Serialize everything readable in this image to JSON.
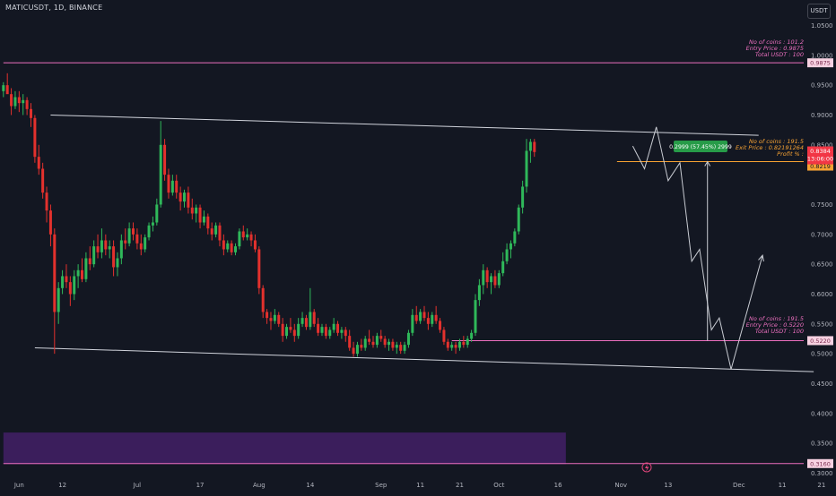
{
  "header": {
    "symbol_title": "MATICUSDT, 1D, BINANCE",
    "currency_button": "USDT"
  },
  "colors": {
    "background": "#131722",
    "up": "#26a69a",
    "down": "#ef5350",
    "candle_up": "#2fb85a",
    "candle_down": "#e3312d",
    "channel_line": "#d1d4dc",
    "pink_line": "#ec6fbf",
    "orange_line": "#f7a233",
    "price_label": "#f23645",
    "purple_zone": "#3b1e5c",
    "axis_text": "#b2b5be",
    "projection": "#c9ccd3"
  },
  "chart_data": {
    "type": "candlestick",
    "title": "MATICUSDT, 1D, BINANCE",
    "y_axis": {
      "min": 0.3,
      "max": 1.05,
      "ticks": [
        1.05,
        1.0,
        0.95,
        0.9,
        0.85,
        0.8,
        0.75,
        0.7,
        0.65,
        0.6,
        0.55,
        0.5,
        0.45,
        0.4,
        0.35,
        0.3
      ],
      "tick_labels": [
        "1.0500",
        "1.0000",
        "0.9500",
        "0.9000",
        "0.8500",
        "",
        "0.7500",
        "0.7000",
        "0.6500",
        "0.6000",
        "0.5500",
        "0.5000",
        "0.4500",
        "0.4000",
        "0.3500",
        "0.3000"
      ],
      "position": "right"
    },
    "x_axis": {
      "start_date": "2023-05-28",
      "end_date": "2023-12-22",
      "ticks": [
        {
          "day": 4,
          "label": "Jun"
        },
        {
          "day": 15,
          "label": "12"
        },
        {
          "day": 34,
          "label": "Jul"
        },
        {
          "day": 50,
          "label": "17"
        },
        {
          "day": 65,
          "label": "Aug"
        },
        {
          "day": 78,
          "label": "14"
        },
        {
          "day": 96,
          "label": "Sep"
        },
        {
          "day": 106,
          "label": "11"
        },
        {
          "day": 116,
          "label": "21"
        },
        {
          "day": 126,
          "label": "Oct"
        },
        {
          "day": 141,
          "label": "16"
        },
        {
          "day": 157,
          "label": "Nov"
        },
        {
          "day": 169,
          "label": "13"
        },
        {
          "day": 187,
          "label": "Dec"
        },
        {
          "day": 198,
          "label": "11"
        },
        {
          "day": 208,
          "label": "21"
        }
      ]
    },
    "series": [
      {
        "name": "MATICUSDT",
        "ohlc": [
          [
            0.94,
            0.955,
            0.93,
            0.95
          ],
          [
            0.95,
            0.97,
            0.94,
            0.935
          ],
          [
            0.935,
            0.945,
            0.9,
            0.915
          ],
          [
            0.915,
            0.94,
            0.91,
            0.93
          ],
          [
            0.93,
            0.94,
            0.905,
            0.92
          ],
          [
            0.92,
            0.935,
            0.9,
            0.925
          ],
          [
            0.925,
            0.93,
            0.9,
            0.91
          ],
          [
            0.91,
            0.92,
            0.88,
            0.895
          ],
          [
            0.895,
            0.9,
            0.82,
            0.83
          ],
          [
            0.83,
            0.85,
            0.8,
            0.81
          ],
          [
            0.81,
            0.82,
            0.76,
            0.77
          ],
          [
            0.77,
            0.78,
            0.72,
            0.74
          ],
          [
            0.74,
            0.75,
            0.68,
            0.7
          ],
          [
            0.7,
            0.71,
            0.5,
            0.57
          ],
          [
            0.57,
            0.62,
            0.55,
            0.61
          ],
          [
            0.61,
            0.64,
            0.6,
            0.63
          ],
          [
            0.63,
            0.65,
            0.61,
            0.62
          ],
          [
            0.62,
            0.63,
            0.58,
            0.6
          ],
          [
            0.6,
            0.64,
            0.59,
            0.63
          ],
          [
            0.63,
            0.65,
            0.61,
            0.64
          ],
          [
            0.64,
            0.66,
            0.62,
            0.625
          ],
          [
            0.625,
            0.67,
            0.62,
            0.66
          ],
          [
            0.66,
            0.68,
            0.64,
            0.65
          ],
          [
            0.65,
            0.69,
            0.645,
            0.68
          ],
          [
            0.68,
            0.7,
            0.66,
            0.67
          ],
          [
            0.67,
            0.71,
            0.66,
            0.69
          ],
          [
            0.69,
            0.7,
            0.665,
            0.675
          ],
          [
            0.675,
            0.69,
            0.66,
            0.68
          ],
          [
            0.68,
            0.69,
            0.63,
            0.645
          ],
          [
            0.645,
            0.67,
            0.63,
            0.66
          ],
          [
            0.66,
            0.7,
            0.65,
            0.69
          ],
          [
            0.69,
            0.71,
            0.675,
            0.685
          ],
          [
            0.685,
            0.72,
            0.68,
            0.71
          ],
          [
            0.71,
            0.72,
            0.69,
            0.7
          ],
          [
            0.7,
            0.71,
            0.675,
            0.685
          ],
          [
            0.685,
            0.7,
            0.665,
            0.675
          ],
          [
            0.675,
            0.7,
            0.67,
            0.695
          ],
          [
            0.695,
            0.72,
            0.69,
            0.715
          ],
          [
            0.715,
            0.73,
            0.705,
            0.72
          ],
          [
            0.72,
            0.76,
            0.715,
            0.75
          ],
          [
            0.75,
            0.89,
            0.745,
            0.85
          ],
          [
            0.85,
            0.86,
            0.79,
            0.8
          ],
          [
            0.8,
            0.81,
            0.76,
            0.77
          ],
          [
            0.77,
            0.8,
            0.765,
            0.79
          ],
          [
            0.79,
            0.8,
            0.76,
            0.77
          ],
          [
            0.77,
            0.78,
            0.74,
            0.755
          ],
          [
            0.755,
            0.775,
            0.745,
            0.77
          ],
          [
            0.77,
            0.78,
            0.735,
            0.745
          ],
          [
            0.745,
            0.76,
            0.725,
            0.735
          ],
          [
            0.735,
            0.75,
            0.72,
            0.745
          ],
          [
            0.745,
            0.75,
            0.71,
            0.72
          ],
          [
            0.72,
            0.74,
            0.715,
            0.73
          ],
          [
            0.73,
            0.735,
            0.7,
            0.71
          ],
          [
            0.71,
            0.72,
            0.69,
            0.7
          ],
          [
            0.7,
            0.72,
            0.695,
            0.715
          ],
          [
            0.715,
            0.72,
            0.68,
            0.69
          ],
          [
            0.69,
            0.7,
            0.665,
            0.675
          ],
          [
            0.675,
            0.69,
            0.67,
            0.685
          ],
          [
            0.685,
            0.69,
            0.665,
            0.67
          ],
          [
            0.67,
            0.685,
            0.665,
            0.68
          ],
          [
            0.68,
            0.71,
            0.675,
            0.705
          ],
          [
            0.705,
            0.715,
            0.69,
            0.695
          ],
          [
            0.695,
            0.71,
            0.69,
            0.7
          ],
          [
            0.7,
            0.705,
            0.68,
            0.69
          ],
          [
            0.69,
            0.7,
            0.67,
            0.675
          ],
          [
            0.675,
            0.68,
            0.6,
            0.61
          ],
          [
            0.61,
            0.615,
            0.56,
            0.57
          ],
          [
            0.57,
            0.575,
            0.55,
            0.56
          ],
          [
            0.56,
            0.57,
            0.54,
            0.555
          ],
          [
            0.555,
            0.575,
            0.55,
            0.565
          ],
          [
            0.565,
            0.57,
            0.545,
            0.55
          ],
          [
            0.55,
            0.56,
            0.52,
            0.53
          ],
          [
            0.53,
            0.55,
            0.525,
            0.545
          ],
          [
            0.545,
            0.56,
            0.535,
            0.54
          ],
          [
            0.54,
            0.55,
            0.52,
            0.53
          ],
          [
            0.53,
            0.56,
            0.525,
            0.55
          ],
          [
            0.55,
            0.57,
            0.545,
            0.56
          ],
          [
            0.56,
            0.565,
            0.54,
            0.545
          ],
          [
            0.545,
            0.61,
            0.54,
            0.57
          ],
          [
            0.57,
            0.575,
            0.545,
            0.55
          ],
          [
            0.55,
            0.56,
            0.53,
            0.535
          ],
          [
            0.535,
            0.55,
            0.53,
            0.545
          ],
          [
            0.545,
            0.55,
            0.525,
            0.53
          ],
          [
            0.53,
            0.545,
            0.525,
            0.54
          ],
          [
            0.54,
            0.56,
            0.535,
            0.55
          ],
          [
            0.55,
            0.555,
            0.53,
            0.535
          ],
          [
            0.535,
            0.545,
            0.525,
            0.54
          ],
          [
            0.54,
            0.545,
            0.52,
            0.53
          ],
          [
            0.53,
            0.54,
            0.505,
            0.51
          ],
          [
            0.51,
            0.52,
            0.495,
            0.5
          ],
          [
            0.5,
            0.52,
            0.495,
            0.515
          ],
          [
            0.515,
            0.525,
            0.505,
            0.51
          ],
          [
            0.51,
            0.53,
            0.505,
            0.525
          ],
          [
            0.525,
            0.54,
            0.515,
            0.52
          ],
          [
            0.52,
            0.53,
            0.51,
            0.515
          ],
          [
            0.515,
            0.535,
            0.51,
            0.53
          ],
          [
            0.53,
            0.54,
            0.52,
            0.525
          ],
          [
            0.525,
            0.53,
            0.51,
            0.515
          ],
          [
            0.515,
            0.525,
            0.505,
            0.52
          ],
          [
            0.52,
            0.525,
            0.505,
            0.51
          ],
          [
            0.51,
            0.52,
            0.5,
            0.515
          ],
          [
            0.515,
            0.52,
            0.5,
            0.505
          ],
          [
            0.505,
            0.52,
            0.5,
            0.515
          ],
          [
            0.515,
            0.54,
            0.51,
            0.535
          ],
          [
            0.535,
            0.575,
            0.53,
            0.565
          ],
          [
            0.565,
            0.58,
            0.55,
            0.555
          ],
          [
            0.555,
            0.575,
            0.55,
            0.57
          ],
          [
            0.57,
            0.58,
            0.555,
            0.56
          ],
          [
            0.56,
            0.57,
            0.54,
            0.55
          ],
          [
            0.55,
            0.57,
            0.545,
            0.565
          ],
          [
            0.565,
            0.58,
            0.55,
            0.555
          ],
          [
            0.555,
            0.56,
            0.535,
            0.54
          ],
          [
            0.54,
            0.545,
            0.515,
            0.52
          ],
          [
            0.52,
            0.525,
            0.505,
            0.51
          ],
          [
            0.51,
            0.52,
            0.505,
            0.515
          ],
          [
            0.515,
            0.52,
            0.5,
            0.51
          ],
          [
            0.51,
            0.525,
            0.505,
            0.52
          ],
          [
            0.52,
            0.53,
            0.51,
            0.515
          ],
          [
            0.515,
            0.53,
            0.51,
            0.525
          ],
          [
            0.525,
            0.54,
            0.52,
            0.535
          ],
          [
            0.535,
            0.6,
            0.53,
            0.59
          ],
          [
            0.59,
            0.625,
            0.58,
            0.615
          ],
          [
            0.615,
            0.65,
            0.6,
            0.64
          ],
          [
            0.64,
            0.645,
            0.61,
            0.62
          ],
          [
            0.62,
            0.635,
            0.6,
            0.63
          ],
          [
            0.63,
            0.64,
            0.61,
            0.615
          ],
          [
            0.615,
            0.64,
            0.61,
            0.635
          ],
          [
            0.635,
            0.67,
            0.63,
            0.655
          ],
          [
            0.655,
            0.685,
            0.65,
            0.675
          ],
          [
            0.675,
            0.69,
            0.66,
            0.685
          ],
          [
            0.685,
            0.71,
            0.68,
            0.705
          ],
          [
            0.705,
            0.75,
            0.7,
            0.745
          ],
          [
            0.745,
            0.79,
            0.735,
            0.78
          ],
          [
            0.78,
            0.86,
            0.77,
            0.84
          ],
          [
            0.84,
            0.86,
            0.82,
            0.855
          ],
          [
            0.855,
            0.86,
            0.83,
            0.838
          ]
        ]
      }
    ],
    "channel_upper": {
      "from": {
        "day": 12,
        "price": 0.9
      },
      "to": {
        "day": 192,
        "price": 0.866
      }
    },
    "channel_lower": {
      "from": {
        "day": 8,
        "price": 0.51
      },
      "to": {
        "day": 206,
        "price": 0.47
      }
    },
    "horizontal_levels": [
      {
        "name": "entry",
        "price": 0.9875,
        "label": "0.9875",
        "from_day": 0
      },
      {
        "name": "exit",
        "price": 0.8219,
        "label": "0.8219",
        "from_day": 156
      },
      {
        "name": "support",
        "price": 0.522,
        "label": "0.5220",
        "from_day": 114
      },
      {
        "name": "bottom",
        "price": 0.316,
        "label": "0.3160",
        "from_day": 0
      }
    ],
    "current_price": {
      "label": "0.8384",
      "countdown": "13:06:00",
      "price": 0.8384
    },
    "purple_zone": {
      "from_day": 0,
      "to_day": 143,
      "top": 0.368,
      "bottom": 0.315
    },
    "projection_path": [
      {
        "day": 160,
        "price": 0.848
      },
      {
        "day": 163,
        "price": 0.81
      },
      {
        "day": 166,
        "price": 0.88
      },
      {
        "day": 169,
        "price": 0.79
      },
      {
        "day": 172,
        "price": 0.82
      },
      {
        "day": 175,
        "price": 0.655
      },
      {
        "day": 177,
        "price": 0.675
      },
      {
        "day": 180,
        "price": 0.54
      },
      {
        "day": 182,
        "price": 0.56
      },
      {
        "day": 185,
        "price": 0.474
      },
      {
        "day": 193,
        "price": 0.665
      }
    ],
    "profit_arrow": {
      "day": 179,
      "from_price": 0.522,
      "to_price": 0.8219
    },
    "annotations": {
      "entry": [
        "No of coins : 101.2",
        "Entry Price : 0.9875",
        "Total USDT : 100"
      ],
      "exit": [
        "No of coins : 191.5",
        "Exit Price : 0.82191264",
        "Profit % :"
      ],
      "support": [
        "No of coins : 191.5",
        "Entry Price : 0.5220",
        "Total USDT : 100"
      ],
      "profit_badge": "0.2999 (57.45%) 2999"
    }
  }
}
